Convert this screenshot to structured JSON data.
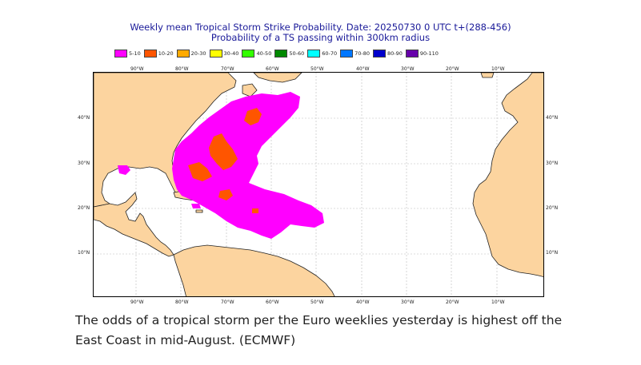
{
  "title": {
    "line1": "Weekly mean Tropical Storm Strike Probability. Date: 20250730  0 UTC   t+(288-456)",
    "line2": "Probability of a TS passing within  300km radius"
  },
  "legend": [
    {
      "label": "5-10",
      "color": "#ff00ff"
    },
    {
      "label": "10-20",
      "color": "#ff5500"
    },
    {
      "label": "20-30",
      "color": "#ffaa00"
    },
    {
      "label": "30-40",
      "color": "#ffff00"
    },
    {
      "label": "40-50",
      "color": "#33ff00"
    },
    {
      "label": "50-60",
      "color": "#008800"
    },
    {
      "label": "60-70",
      "color": "#00ffff"
    },
    {
      "label": "70-80",
      "color": "#0077ff"
    },
    {
      "label": "80-90",
      "color": "#0000cc"
    },
    {
      "label": "90-110",
      "color": "#6600aa"
    }
  ],
  "axes": {
    "lon_labels": [
      "90°W",
      "80°W",
      "70°W",
      "60°W",
      "50°W",
      "40°W",
      "30°W",
      "20°W",
      "10°W"
    ],
    "lat_labels": [
      "40°N",
      "30°N",
      "20°N",
      "10°N"
    ]
  },
  "colors": {
    "land": "#fcd49f",
    "ocean": "#ffffff",
    "grid": "#bbbbbb"
  },
  "caption": "The odds of a tropical storm per the Euro weeklies yesterday is highest off the East Coast in mid-August. (ECMWF)"
}
